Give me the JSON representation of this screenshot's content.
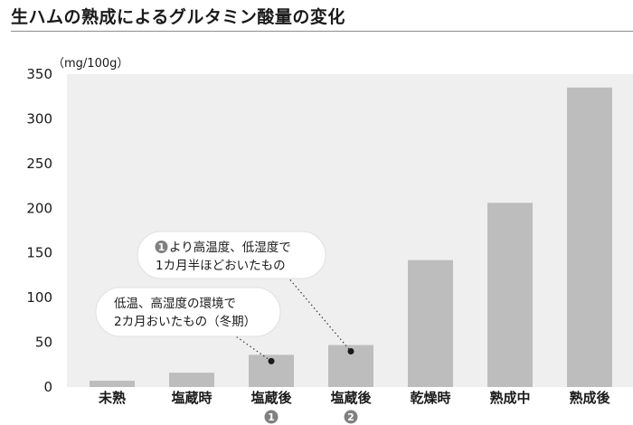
{
  "title": "生ハムの熟成によるグルタミン酸量の変化",
  "chart_data": {
    "type": "bar",
    "unit_label": "（mg/100g）",
    "ylim": [
      0,
      350
    ],
    "yticks": [
      0,
      50,
      100,
      150,
      200,
      250,
      300,
      350
    ],
    "grid": false,
    "colors": {
      "bar": "#bdbdbd",
      "plot_bg": "#efefef",
      "badge": "#808080"
    },
    "categories": [
      "未熟",
      "塩蔵時",
      "塩蔵後",
      "塩蔵後",
      "乾燥時",
      "熟成中",
      "熟成後"
    ],
    "category_badges": [
      "",
      "",
      "1",
      "2",
      "",
      "",
      ""
    ],
    "values": [
      7,
      16,
      36,
      47,
      142,
      206,
      335
    ],
    "annotations": [
      {
        "target_index": 2,
        "lines": [
          "低温、高湿度の環境で",
          "2カ月おいたもの（冬期）"
        ],
        "badge": ""
      },
      {
        "target_index": 3,
        "lines": [
          "より高温度、低湿度で",
          "1カ月半ほどおいたもの"
        ],
        "badge": "1"
      }
    ]
  }
}
